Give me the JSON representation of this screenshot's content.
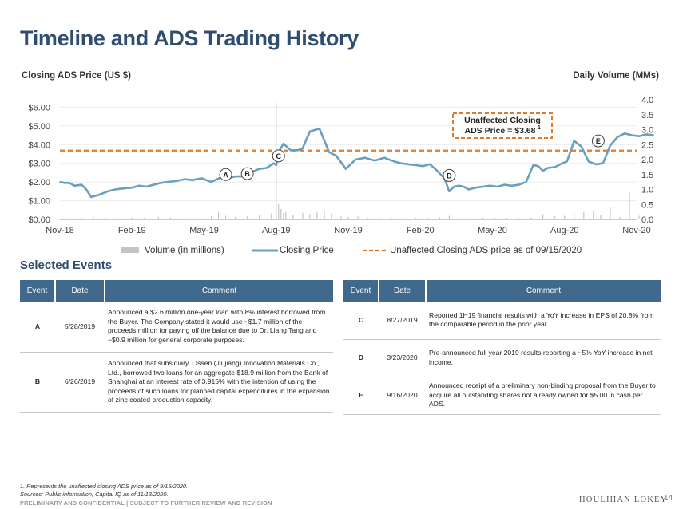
{
  "page": {
    "title": "Timeline and ADS Trading History",
    "left_axis_title": "Closing ADS Price (US $)",
    "right_axis_title": "Daily Volume (MMs)",
    "section_title": "Selected Events",
    "footnote_1": "1.   Represents the unaffected closing ADS price as of 9/15/2020.",
    "footnote_2": "Sources: Public information, Capital IQ as of 11/13/2020.",
    "confidential": "PRELIMINARY AND CONFIDENTIAL | SUBJECT TO FURTHER REVIEW AND REVISION",
    "brand": "HOULIHAN LOKEY",
    "page_number": "14"
  },
  "colors": {
    "title": "#2f4e6f",
    "price_line": "#6a9fbe",
    "volume_bar": "#c4c4c4",
    "unaffected_line": "#e07b2c",
    "table_header": "#41698e"
  },
  "chart_data": {
    "type": "line",
    "x_ticks": [
      "Nov-18",
      "Feb-19",
      "May-19",
      "Aug-19",
      "Nov-19",
      "Feb-20",
      "May-20",
      "Aug-20",
      "Nov-20"
    ],
    "y_left": {
      "ticks": [
        "$0.00",
        "$1.00",
        "$2.00",
        "$3.00",
        "$4.00",
        "$5.00",
        "$6.00"
      ],
      "range": [
        0,
        6.4
      ]
    },
    "y_right": {
      "ticks": [
        "0.0",
        "0.5",
        "1.0",
        "1.5",
        "2.0",
        "2.5",
        "3.0",
        "3.5",
        "4.0"
      ],
      "range": [
        0,
        4.0
      ]
    },
    "series": [
      {
        "name": "Closing Price",
        "t": [
          0,
          0.2,
          0.4,
          0.6,
          0.9,
          1.1,
          1.3,
          1.6,
          2.0,
          2.3,
          2.6,
          3.0,
          3.3,
          3.6,
          3.9,
          4.2,
          4.5,
          4.8,
          5.2,
          5.5,
          5.9,
          6.3,
          6.7,
          7.0,
          7.3,
          7.6,
          7.9,
          8.3,
          8.6,
          8.9,
          9.0,
          9.1,
          9.3,
          9.6,
          9.9,
          10.1,
          10.4,
          10.8,
          11.2,
          11.5,
          11.9,
          12.3,
          12.7,
          13.1,
          13.5,
          13.9,
          14.2,
          14.5,
          14.8,
          15.1,
          15.4,
          15.7,
          16.0,
          16.2,
          16.4,
          16.6,
          16.8,
          17.0,
          17.3,
          17.6,
          17.9,
          18.2,
          18.5,
          18.8,
          19.1,
          19.4,
          19.7,
          19.9,
          20.1,
          20.3,
          20.6,
          20.9,
          21.1,
          21.4,
          21.7,
          22.0,
          22.3,
          22.6,
          22.9,
          23.2,
          23.5,
          23.8,
          24.1,
          24.4,
          24.7
        ],
        "values": [
          2.0,
          1.95,
          1.95,
          1.8,
          1.85,
          1.6,
          1.2,
          1.3,
          1.5,
          1.6,
          1.65,
          1.7,
          1.8,
          1.75,
          1.85,
          1.95,
          2.0,
          2.05,
          2.15,
          2.1,
          2.2,
          2.0,
          2.25,
          2.2,
          2.3,
          2.3,
          2.5,
          2.7,
          2.75,
          3.0,
          2.9,
          3.6,
          4.05,
          3.7,
          3.7,
          3.8,
          4.7,
          4.85,
          3.6,
          3.4,
          2.7,
          3.2,
          3.3,
          3.15,
          3.3,
          3.1,
          3.0,
          2.95,
          2.9,
          2.85,
          2.95,
          2.6,
          2.2,
          1.5,
          1.75,
          1.8,
          1.75,
          1.6,
          1.7,
          1.75,
          1.8,
          1.75,
          1.85,
          1.8,
          1.85,
          2.0,
          2.9,
          2.85,
          2.6,
          2.75,
          2.8,
          3.0,
          3.1,
          4.2,
          3.9,
          3.1,
          2.95,
          3.0,
          3.95,
          4.4,
          4.6,
          4.5,
          4.45,
          4.55,
          4.5
        ]
      },
      {
        "name": "Volume (in millions)",
        "t": [
          0.4,
          0.9,
          1.4,
          1.9,
          2.4,
          3.0,
          3.5,
          4.1,
          4.6,
          5.2,
          5.7,
          6.3,
          6.6,
          6.9,
          7.3,
          7.8,
          8.3,
          8.8,
          9.0,
          9.1,
          9.2,
          9.3,
          9.4,
          9.7,
          10.1,
          10.4,
          10.7,
          11.0,
          11.3,
          11.7,
          12.0,
          12.4,
          12.8,
          13.3,
          13.8,
          14.3,
          14.8,
          15.3,
          15.8,
          16.2,
          16.6,
          17.1,
          17.6,
          18.1,
          18.6,
          19.1,
          19.6,
          20.1,
          20.6,
          21.0,
          21.4,
          21.8,
          22.2,
          22.5,
          22.9,
          23.3,
          23.7,
          24.1,
          24.5
        ],
        "values": [
          0.04,
          0.05,
          0.07,
          0.05,
          0.04,
          0.06,
          0.05,
          0.08,
          0.06,
          0.07,
          0.05,
          0.1,
          0.25,
          0.12,
          0.08,
          0.1,
          0.15,
          0.2,
          3.9,
          0.5,
          0.35,
          0.2,
          0.25,
          0.15,
          0.22,
          0.18,
          0.25,
          0.3,
          0.2,
          0.1,
          0.08,
          0.1,
          0.06,
          0.05,
          0.05,
          0.04,
          0.06,
          0.05,
          0.07,
          0.12,
          0.1,
          0.08,
          0.06,
          0.05,
          0.05,
          0.04,
          0.06,
          0.18,
          0.1,
          0.12,
          0.2,
          0.25,
          0.3,
          0.15,
          0.4,
          0.08,
          0.9,
          0.12,
          0.08
        ]
      },
      {
        "name": "Unaffected Closing ADS price as of 09/15/2020",
        "value": 3.68
      }
    ],
    "legend": [
      "Volume (in millions)",
      "Closing Price",
      "Unaffected Closing ADS price as of 09/15/2020"
    ],
    "legend_position": "bottom",
    "annotation_lines": [
      "Unaffected Closing",
      "ADS Price = $3.68"
    ],
    "annotation_superscript": "1",
    "event_markers": [
      {
        "label": "A",
        "t": 6.9,
        "price": 2.4
      },
      {
        "label": "B",
        "t": 7.8,
        "price": 2.45
      },
      {
        "label": "C",
        "t": 9.1,
        "price": 3.4
      },
      {
        "label": "D",
        "t": 16.2,
        "price": 2.35
      },
      {
        "label": "E",
        "t": 22.4,
        "price": 4.2
      }
    ]
  },
  "left_table": {
    "headers": [
      "Event",
      "Date",
      "Comment"
    ],
    "rows": [
      {
        "event": "A",
        "date": "5/28/2019",
        "comment": "Announced a $2.6 million one-year loan with 8% interest borrowed from the Buyer. The Company stated it would use ~$1.7 million of the proceeds million for paying off the balance due to Dr. Liang Tang and ~$0.9 million for general corporate purposes."
      },
      {
        "event": "B",
        "date": "6/26/2019",
        "comment": "Announced that subsidiary, Ossen (Jiujiang) Innovation Materials Co., Ltd., borrowed two loans for an aggregate $18.9 million from the Bank of Shanghai at an interest rate of 3.915% with the intention of using the proceeds of such loans for planned capital expenditures in the expansion of zinc coated production capacity."
      }
    ]
  },
  "right_table": {
    "headers": [
      "Event",
      "Date",
      "Comment"
    ],
    "rows": [
      {
        "event": "C",
        "date": "8/27/2019",
        "comment": "Reported 1H19 financial results with a YoY increase in EPS of 20.8% from the comparable period in the prior year."
      },
      {
        "event": "D",
        "date": "3/23/2020",
        "comment": "Pre-announced full year 2019 results reporting a ~5% YoY increase in net income."
      },
      {
        "event": "E",
        "date": "9/16/2020",
        "comment": "Announced receipt of a preliminary non-binding proposal from the Buyer to acquire all outstanding shares not already owned for $5.00 in cash per ADS."
      }
    ]
  }
}
